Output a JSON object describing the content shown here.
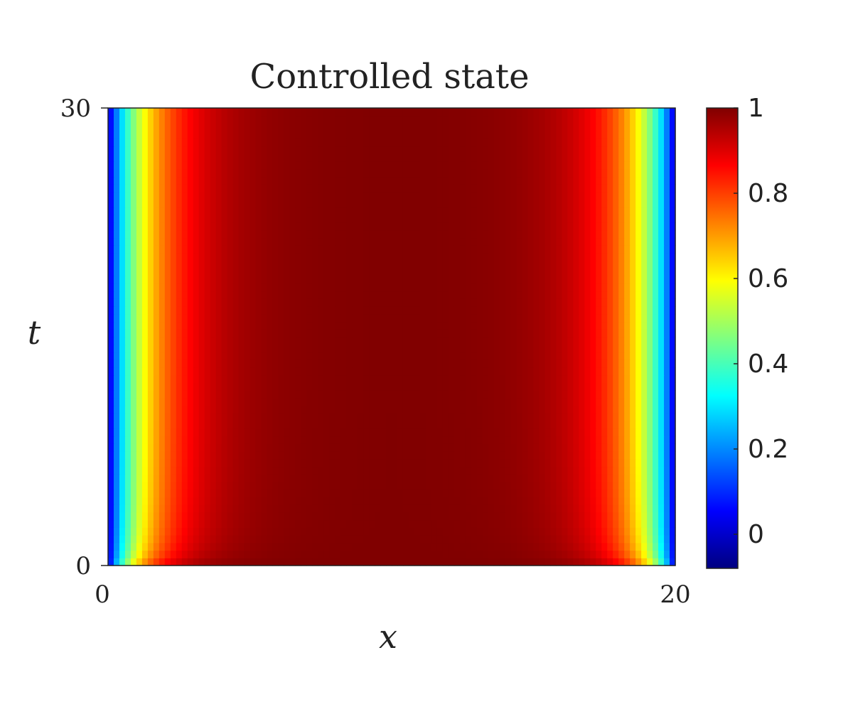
{
  "chart_data": {
    "type": "heatmap",
    "title": "Controlled state",
    "xlabel": "x",
    "ylabel": "t",
    "xlim": [
      0,
      20
    ],
    "ylim": [
      0,
      30
    ],
    "x_ticks": [
      "0",
      "20"
    ],
    "y_ticks": [
      "0",
      "30"
    ],
    "colorbar": {
      "range": [
        -0.08,
        1.0
      ],
      "ticks": [
        0,
        0.2,
        0.4,
        0.6,
        0.8,
        1
      ],
      "tick_labels": [
        "0",
        "0.2",
        "0.4",
        "0.6",
        "0.8",
        "1"
      ],
      "colormap": "jet"
    },
    "field_description_profiles": {
      "t_values": [
        0.2,
        5,
        30
      ],
      "x_values": [
        0.0,
        0.5,
        1.0,
        1.5,
        2.0,
        2.5,
        3.0,
        4.0,
        6.0,
        10.0
      ],
      "state_at_t": [
        [
          0.0,
          0.62,
          0.82,
          0.92,
          0.97,
          0.99,
          1.0,
          1.0,
          1.0,
          1.0
        ],
        [
          0.0,
          0.15,
          0.35,
          0.55,
          0.72,
          0.84,
          0.91,
          0.96,
          1.0,
          1.0
        ],
        [
          0.0,
          0.12,
          0.3,
          0.48,
          0.63,
          0.76,
          0.86,
          0.94,
          1.0,
          1.0
        ]
      ],
      "symmetry": "symmetric about x = 10"
    },
    "grid": false
  }
}
